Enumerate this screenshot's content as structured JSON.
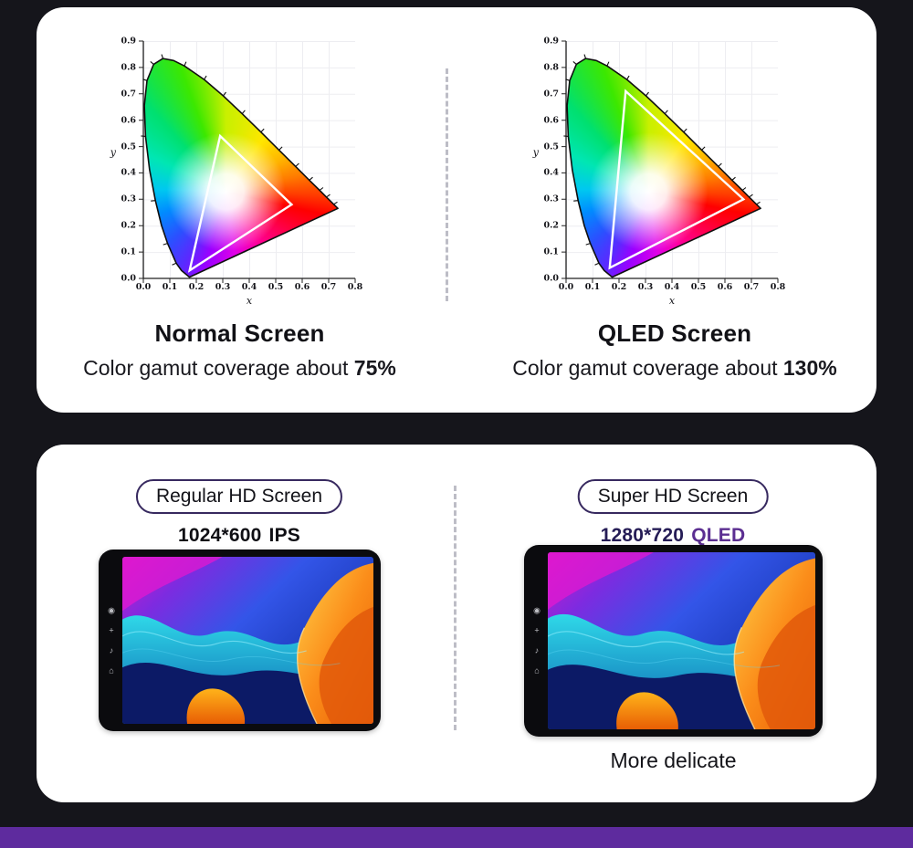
{
  "page": {
    "background": "#15151b",
    "accent_purple": "#5b2e91",
    "footer_color": "#5e2b9e"
  },
  "gamut_section": {
    "left": {
      "title": "Normal Screen",
      "subtitle_prefix": "Color gamut coverage about ",
      "coverage": "75%"
    },
    "right": {
      "title": "QLED Screen",
      "subtitle_prefix": "Color gamut coverage about ",
      "coverage": "130%"
    }
  },
  "screens_section": {
    "left": {
      "badge": "Regular HD Screen",
      "resolution": "1024*600",
      "panel": "IPS"
    },
    "right": {
      "badge": "Super HD Screen",
      "resolution": "1280*720",
      "panel": "QLED",
      "caption": "More delicate"
    }
  },
  "device": {
    "side_buttons": [
      {
        "name": "power",
        "glyph": "◉"
      },
      {
        "name": "volume-up",
        "glyph": "+"
      },
      {
        "name": "music",
        "glyph": "♪"
      },
      {
        "name": "home",
        "glyph": "⌂"
      }
    ]
  },
  "chart_data": [
    {
      "type": "area",
      "title": "Normal Screen",
      "annotation": "Color gamut coverage about 75%",
      "coverage": "75%",
      "xlabel": "x",
      "ylabel": "y",
      "xlim": [
        0,
        0.8
      ],
      "ylim": [
        0,
        0.9
      ],
      "grid": true,
      "x_tick_labels": [
        "0.0",
        "0.1",
        "0.2",
        "0.3",
        "0.4",
        "0.5",
        "0.6",
        "0.7",
        "0.8"
      ],
      "y_tick_labels": [
        "0.0",
        "0.1",
        "0.2",
        "0.3",
        "0.4",
        "0.5",
        "0.6",
        "0.7",
        "0.8",
        "0.9"
      ],
      "gamut_triangle": [
        [
          0.175,
          0.03
        ],
        [
          0.29,
          0.54
        ],
        [
          0.56,
          0.28
        ]
      ],
      "spectral_locus": [
        [
          0.1741,
          0.005
        ],
        [
          0.144,
          0.0297
        ],
        [
          0.1241,
          0.0578
        ],
        [
          0.0913,
          0.1327
        ],
        [
          0.0454,
          0.295
        ],
        [
          0.0082,
          0.5384
        ],
        [
          0.0139,
          0.7502
        ],
        [
          0.0743,
          0.8338
        ],
        [
          0.1547,
          0.8059
        ],
        [
          0.2296,
          0.7543
        ],
        [
          0.3016,
          0.6923
        ],
        [
          0.3731,
          0.6245
        ],
        [
          0.4441,
          0.5547
        ],
        [
          0.5125,
          0.4866
        ],
        [
          0.5752,
          0.4242
        ],
        [
          0.627,
          0.3725
        ],
        [
          0.6915,
          0.3083
        ],
        [
          0.7347,
          0.2653
        ]
      ]
    },
    {
      "type": "area",
      "title": "QLED Screen",
      "annotation": "Color gamut coverage about 130%",
      "coverage": "130%",
      "xlabel": "x",
      "ylabel": "y",
      "xlim": [
        0,
        0.8
      ],
      "ylim": [
        0,
        0.9
      ],
      "grid": true,
      "x_tick_labels": [
        "0.0",
        "0.1",
        "0.2",
        "0.3",
        "0.4",
        "0.5",
        "0.6",
        "0.7",
        "0.8"
      ],
      "y_tick_labels": [
        "0.0",
        "0.1",
        "0.2",
        "0.3",
        "0.4",
        "0.5",
        "0.6",
        "0.7",
        "0.8",
        "0.9"
      ],
      "gamut_triangle": [
        [
          0.165,
          0.04
        ],
        [
          0.225,
          0.71
        ],
        [
          0.67,
          0.3
        ]
      ],
      "spectral_locus": [
        [
          0.1741,
          0.005
        ],
        [
          0.144,
          0.0297
        ],
        [
          0.1241,
          0.0578
        ],
        [
          0.0913,
          0.1327
        ],
        [
          0.0454,
          0.295
        ],
        [
          0.0082,
          0.5384
        ],
        [
          0.0139,
          0.7502
        ],
        [
          0.0743,
          0.8338
        ],
        [
          0.1547,
          0.8059
        ],
        [
          0.2296,
          0.7543
        ],
        [
          0.3016,
          0.6923
        ],
        [
          0.3731,
          0.6245
        ],
        [
          0.4441,
          0.5547
        ],
        [
          0.5125,
          0.4866
        ],
        [
          0.5752,
          0.4242
        ],
        [
          0.627,
          0.3725
        ],
        [
          0.6915,
          0.3083
        ],
        [
          0.7347,
          0.2653
        ]
      ]
    }
  ]
}
